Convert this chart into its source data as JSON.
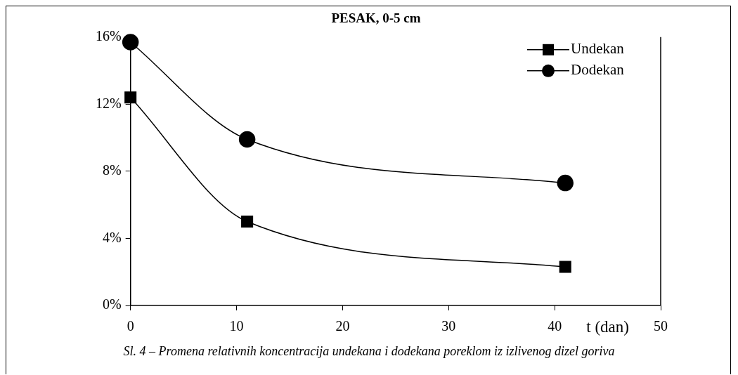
{
  "chart_data": {
    "type": "line",
    "title": "PESAK, 0-5 cm",
    "xlabel": "t (dan)",
    "x": [
      0,
      11,
      41
    ],
    "series": [
      {
        "name": "Undekan",
        "color": "#000000",
        "marker": "square",
        "values": [
          12.4,
          5.0,
          2.3
        ]
      },
      {
        "name": "Dodekan",
        "color": "#000000",
        "marker": "circle",
        "values": [
          15.7,
          9.9,
          7.3
        ]
      }
    ],
    "xlim": [
      0,
      50
    ],
    "xticks": [
      0,
      10,
      20,
      30,
      40,
      50
    ],
    "ylim": [
      0,
      16
    ],
    "yticks": [
      {
        "value": 0,
        "label": "0%"
      },
      {
        "value": 4,
        "label": "4%"
      },
      {
        "value": 8,
        "label": "8%"
      },
      {
        "value": 12,
        "label": "12%"
      },
      {
        "value": 16,
        "label": "16%"
      }
    ],
    "grid": false,
    "legend": "top right",
    "line_style": "solid",
    "annotations": [
      "Sl. 4 – Promena relativnih koncentracija undekana i dodekana poreklom iz izlivenog dizel goriva"
    ]
  }
}
